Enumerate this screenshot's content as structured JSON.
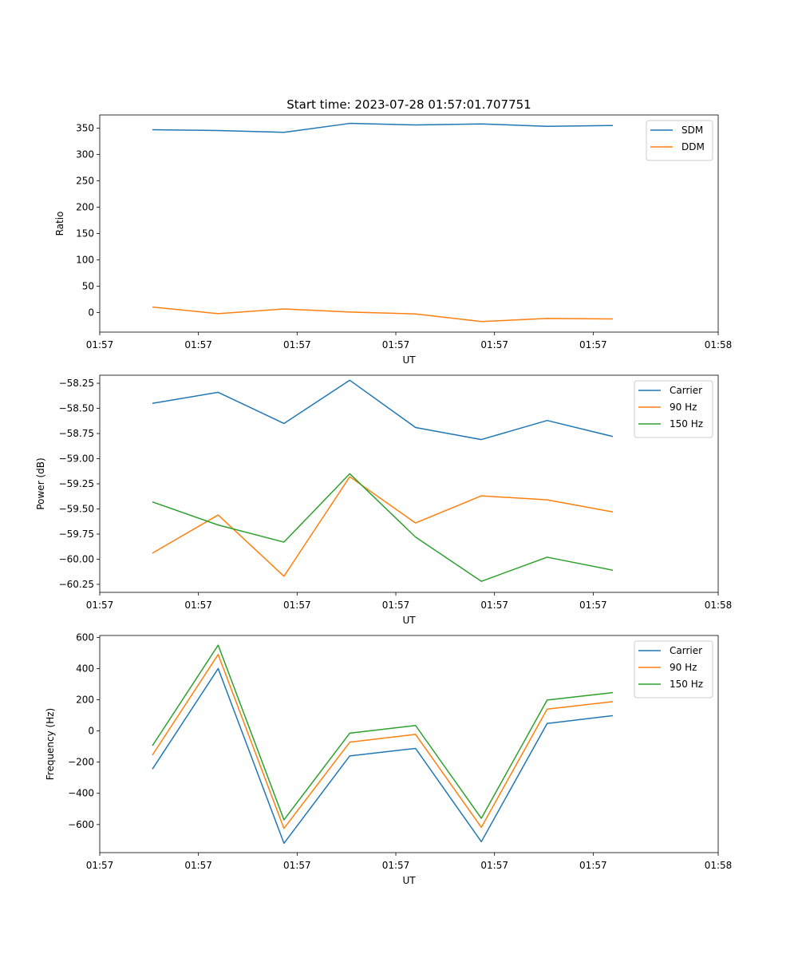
{
  "title": "Start time: 2023-07-28 01:57:01.707751",
  "colors": {
    "c0": "#1f77b4",
    "c1": "#ff7f0e",
    "c2": "#2ca02c"
  },
  "chart_data": [
    {
      "type": "line",
      "xlabel": "UT",
      "ylabel": "Ratio",
      "x": [
        1,
        2,
        3,
        4,
        5,
        6,
        7,
        8
      ],
      "xlim": [
        0.2,
        9.6
      ],
      "x_ticks": [
        0.2,
        1.7,
        3.2,
        4.7,
        6.2,
        7.7,
        9.6
      ],
      "x_tick_labels": [
        "01:57",
        "01:57",
        "01:57",
        "01:57",
        "01:57",
        "01:57",
        "01:58"
      ],
      "ylim": [
        -37,
        375
      ],
      "y_ticks": [
        0,
        50,
        100,
        150,
        200,
        250,
        300,
        350
      ],
      "y_tick_labels": [
        "0",
        "50",
        "100",
        "150",
        "200",
        "250",
        "300",
        "350"
      ],
      "legend": "top-right",
      "series": [
        {
          "name": "SDM",
          "color": "#1f77b4",
          "values": [
            347,
            345.5,
            342,
            359,
            356,
            358,
            353.5,
            355
          ]
        },
        {
          "name": "DDM",
          "color": "#ff7f0e",
          "values": [
            10.5,
            -2,
            7,
            1,
            -2.5,
            -17,
            -11,
            -12
          ]
        }
      ]
    },
    {
      "type": "line",
      "xlabel": "UT",
      "ylabel": "Power (dB)",
      "x": [
        1,
        2,
        3,
        4,
        5,
        6,
        7,
        8
      ],
      "xlim": [
        0.2,
        9.6
      ],
      "x_ticks": [
        0.2,
        1.7,
        3.2,
        4.7,
        6.2,
        7.7,
        9.6
      ],
      "x_tick_labels": [
        "01:57",
        "01:57",
        "01:57",
        "01:57",
        "01:57",
        "01:57",
        "01:58"
      ],
      "ylim": [
        -60.33,
        -58.17
      ],
      "y_ticks": [
        -58.25,
        -58.5,
        -58.75,
        -59.0,
        -59.25,
        -59.5,
        -59.75,
        -60.0,
        -60.25
      ],
      "y_tick_labels": [
        "−58.25",
        "−58.50",
        "−58.75",
        "−59.00",
        "−59.25",
        "−59.50",
        "−59.75",
        "−60.00",
        "−60.25"
      ],
      "legend": "top-right",
      "series": [
        {
          "name": "Carrier",
          "color": "#1f77b4",
          "values": [
            -58.45,
            -58.34,
            -58.65,
            -58.22,
            -58.69,
            -58.81,
            -58.62,
            -58.78
          ]
        },
        {
          "name": "90 Hz",
          "color": "#ff7f0e",
          "values": [
            -59.94,
            -59.56,
            -60.17,
            -59.18,
            -59.64,
            -59.37,
            -59.41,
            -59.53
          ]
        },
        {
          "name": "150 Hz",
          "color": "#2ca02c",
          "values": [
            -59.43,
            -59.66,
            -59.83,
            -59.15,
            -59.78,
            -60.22,
            -59.98,
            -60.11
          ]
        }
      ]
    },
    {
      "type": "line",
      "xlabel": "UT",
      "ylabel": "Frequency (Hz)",
      "x": [
        1,
        2,
        3,
        4,
        5,
        6,
        7,
        8
      ],
      "xlim": [
        0.2,
        9.6
      ],
      "x_ticks": [
        0.2,
        1.7,
        3.2,
        4.7,
        6.2,
        7.7,
        9.6
      ],
      "x_tick_labels": [
        "01:57",
        "01:57",
        "01:57",
        "01:57",
        "01:57",
        "01:57",
        "01:58"
      ],
      "ylim": [
        -780,
        612
      ],
      "y_ticks": [
        600,
        400,
        200,
        0,
        -200,
        -400,
        -600
      ],
      "y_tick_labels": [
        "600",
        "400",
        "200",
        "0",
        "−200",
        "−400",
        "−600"
      ],
      "legend": "top-right",
      "series": [
        {
          "name": "Carrier",
          "color": "#1f77b4",
          "values": [
            -245,
            400,
            -720,
            -160,
            -112,
            -710,
            48,
            98
          ]
        },
        {
          "name": "90 Hz",
          "color": "#ff7f0e",
          "values": [
            -155,
            490,
            -625,
            -72,
            -22,
            -618,
            140,
            188
          ]
        },
        {
          "name": "150 Hz",
          "color": "#2ca02c",
          "values": [
            -95,
            550,
            -570,
            -14,
            35,
            -560,
            198,
            246
          ]
        }
      ]
    }
  ]
}
